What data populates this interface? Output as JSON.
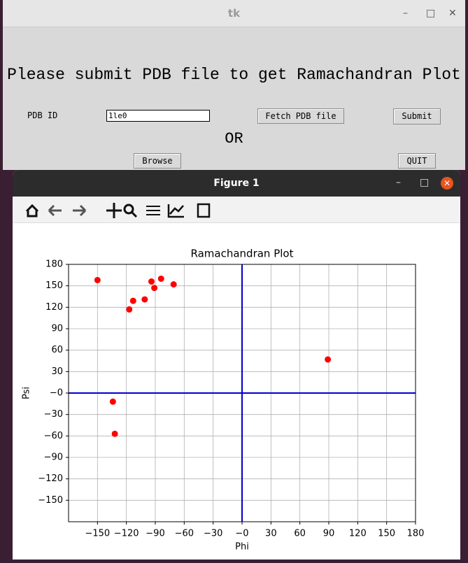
{
  "tk_window": {
    "title": "tk",
    "form": {
      "heading": "Please submit PDB file to get Ramachandran Plot",
      "pdb_id_label": "PDB ID",
      "pdb_id_value": "1le0",
      "fetch_button": "Fetch PDB file",
      "submit_button": "Submit",
      "or_text": "OR",
      "browse_button": "Browse",
      "quit_button": "QUIT"
    }
  },
  "figure_window": {
    "title": "Figure 1"
  },
  "chart_data": {
    "type": "scatter",
    "title": "Ramachandran Plot",
    "x_label": "Phi",
    "y_label": "Psi",
    "x": [
      -150,
      -117,
      -113,
      -101,
      -94,
      -91,
      -84,
      -71,
      89,
      -134,
      -132
    ],
    "values": [
      158,
      117,
      129,
      131,
      156,
      147,
      160,
      152,
      47,
      -12,
      -57
    ],
    "color": "#ff0000",
    "zero_lines_color": "#0000cc",
    "xlim": [
      -180,
      180
    ],
    "xticks": [
      {
        "value": -150,
        "label": "−150"
      },
      {
        "value": -120,
        "label": "−120"
      },
      {
        "value": -90,
        "label": "−90"
      },
      {
        "value": -60,
        "label": "−60"
      },
      {
        "value": -30,
        "label": "−30"
      },
      {
        "value": 0,
        "label": "−0"
      },
      30,
      60,
      90,
      120,
      150,
      180
    ],
    "ylim": [
      -180,
      180
    ],
    "yticks": [
      {
        "value": -150,
        "label": "−150"
      },
      {
        "value": -120,
        "label": "−120"
      },
      {
        "value": -90,
        "label": "−90"
      },
      {
        "value": -60,
        "label": "−60"
      },
      {
        "value": -30,
        "label": "−30"
      },
      {
        "value": 0,
        "label": "−0"
      },
      30,
      60,
      90,
      120,
      150,
      180
    ],
    "grid": true
  }
}
